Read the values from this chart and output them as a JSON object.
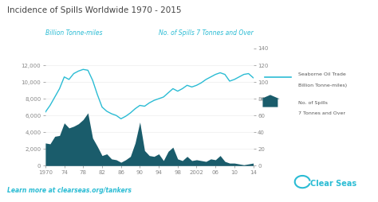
{
  "title": "Incidence of Spills Worldwide 1970 - 2015",
  "title_color": "#444444",
  "left_axis_label": "Billion Tonne-miles",
  "right_axis_label": "No. of Spills 7 Tonnes and Over",
  "axis_label_color": "#2bbcd4",
  "background_color": "#ffffff",
  "plot_bg_color": "#f7f7f7",
  "fill_color": "#1a5c6b",
  "line_color": "#2bbcd4",
  "footer_text": "Learn more at clearseas.org/tankers",
  "footer_color": "#2bbcd4",
  "legend_line_label1": "Seaborne Oil Trade",
  "legend_line_label2": "Billion Tonne-miles)",
  "legend_fill_label1": "No. of Spills",
  "legend_fill_label2": "7 Tonnes and Over",
  "years": [
    1970,
    1971,
    1972,
    1973,
    1974,
    1975,
    1976,
    1977,
    1978,
    1979,
    1980,
    1981,
    1982,
    1983,
    1984,
    1985,
    1986,
    1987,
    1988,
    1989,
    1990,
    1991,
    1992,
    1993,
    1994,
    1995,
    1996,
    1997,
    1998,
    1999,
    2000,
    2001,
    2002,
    2003,
    2004,
    2005,
    2006,
    2007,
    2008,
    2009,
    2010,
    2011,
    2012,
    2013,
    2014
  ],
  "seaborne_trade": [
    6400,
    7200,
    8200,
    9200,
    10600,
    10300,
    11000,
    11300,
    11500,
    11400,
    10200,
    8500,
    7000,
    6500,
    6200,
    6000,
    5600,
    5900,
    6300,
    6800,
    7200,
    7100,
    7500,
    7800,
    8000,
    8200,
    8700,
    9200,
    8900,
    9200,
    9600,
    9400,
    9600,
    9900,
    10300,
    10600,
    10900,
    11100,
    10900,
    10100,
    10300,
    10600,
    10900,
    11000,
    10500
  ],
  "spills_count": [
    27,
    26,
    35,
    36,
    51,
    45,
    47,
    50,
    55,
    63,
    33,
    23,
    12,
    14,
    8,
    7,
    4,
    7,
    11,
    27,
    52,
    18,
    12,
    11,
    14,
    6,
    17,
    22,
    8,
    6,
    11,
    6,
    7,
    6,
    5,
    8,
    7,
    12,
    5,
    3,
    3,
    2,
    1,
    2,
    3
  ],
  "ylim_left": [
    0,
    14000
  ],
  "ylim_right": [
    0,
    140
  ],
  "yticks_left": [
    0,
    2000,
    4000,
    6000,
    8000,
    10000,
    12000
  ],
  "yticks_right": [
    0,
    20,
    40,
    60,
    80,
    100,
    120,
    140
  ],
  "xticks": [
    1970,
    1974,
    1978,
    1982,
    1986,
    1990,
    1994,
    1998,
    2002,
    2006,
    2010,
    2014
  ],
  "xtick_labels": [
    "1970",
    "74",
    "78",
    "82",
    "86",
    "90",
    "94",
    "98",
    "2002",
    "06",
    "10",
    "14"
  ],
  "grid_color": "#e8e8e8",
  "tick_color": "#888888"
}
